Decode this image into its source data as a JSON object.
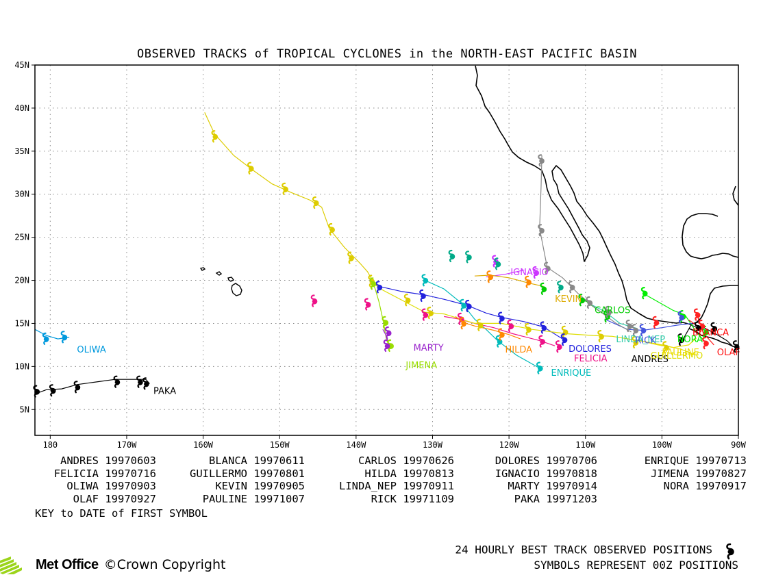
{
  "title": "OBSERVED TRACKS of TROPICAL CYCLONES in the NORTH-EAST PACIFIC BASIN",
  "map": {
    "lon_min": -182,
    "lon_max": -90,
    "lat_min": 2,
    "lat_max": 45,
    "lat_ticks": [
      {
        "v": 45,
        "label": "45N"
      },
      {
        "v": 40,
        "label": "40N"
      },
      {
        "v": 35,
        "label": "35N"
      },
      {
        "v": 30,
        "label": "30N"
      },
      {
        "v": 25,
        "label": "25N"
      },
      {
        "v": 20,
        "label": "20N"
      },
      {
        "v": 15,
        "label": "15N"
      },
      {
        "v": 10,
        "label": "10N"
      },
      {
        "v": 5,
        "label": "5N"
      }
    ],
    "lon_ticks": [
      {
        "v": -180,
        "label": "180"
      },
      {
        "v": -170,
        "label": "170W"
      },
      {
        "v": -160,
        "label": "160W"
      },
      {
        "v": -150,
        "label": "150W"
      },
      {
        "v": -140,
        "label": "140W"
      },
      {
        "v": -130,
        "label": "130W"
      },
      {
        "v": -120,
        "label": "120W"
      },
      {
        "v": -110,
        "label": "110W"
      },
      {
        "v": -100,
        "label": "100W"
      },
      {
        "v": -90,
        "label": "90W"
      }
    ],
    "grid": true
  },
  "tracks": [
    {
      "name": "ANDRES",
      "date": "19970603",
      "color": "#000000",
      "label_at": [
        -104,
        10.5
      ],
      "points": [
        [
          -90.8,
          12.4
        ],
        [
          -91.5,
          13
        ],
        [
          -93,
          13.8
        ],
        [
          -94.5,
          14.5
        ],
        [
          -95.2,
          14.2
        ],
        [
          -95.6,
          14.6
        ],
        [
          -96.2,
          14.8
        ],
        [
          -97.2,
          13.2
        ]
      ]
    },
    {
      "name": "BLANCA",
      "date": "19970611",
      "color": "#ff0000",
      "label_at": [
        -96,
        13.6
      ],
      "points": [
        [
          -94.5,
          13.5
        ],
        [
          -94.8,
          14.6
        ],
        [
          -95.2,
          15.4
        ],
        [
          -95.4,
          16.1
        ]
      ]
    },
    {
      "name": "CARLOS",
      "date": "19970626",
      "color": "#00cc00",
      "label_at": [
        -108.8,
        16.2
      ],
      "points": [
        [
          -110.5,
          18
        ],
        [
          -109.5,
          17.3
        ],
        [
          -108.3,
          16.5
        ],
        [
          -107,
          15.8
        ]
      ]
    },
    {
      "name": "DOLORES",
      "date": "19970706",
      "color": "#2222dd",
      "label_at": [
        -112.2,
        11.7
      ],
      "points": [
        [
          -137,
          19.3
        ],
        [
          -134,
          18.7
        ],
        [
          -131,
          18.3
        ],
        [
          -128.5,
          17.8
        ],
        [
          -125.5,
          17.1
        ],
        [
          -123,
          16.2
        ],
        [
          -121,
          15.7
        ],
        [
          -118,
          15.2
        ],
        [
          -115.5,
          14.6
        ],
        [
          -113,
          13.2
        ]
      ]
    },
    {
      "name": "ENRIQUE",
      "date": "19970713",
      "color": "#00bbbb",
      "label_at": [
        -114.5,
        8.9
      ],
      "points": [
        [
          -131,
          20
        ],
        [
          -128.5,
          19
        ],
        [
          -126,
          17.2
        ],
        [
          -124.5,
          15.5
        ],
        [
          -123,
          14.3
        ],
        [
          -121.5,
          13
        ],
        [
          -119,
          11.3
        ],
        [
          -116,
          9.8
        ]
      ]
    },
    {
      "name": "FELICIA",
      "date": "19970716",
      "color": "#ee1188",
      "label_at": [
        -111.5,
        10.6
      ],
      "points": [
        [
          -128.5,
          15.8
        ],
        [
          -126.5,
          15.5
        ],
        [
          -124.5,
          15
        ],
        [
          -122,
          14.5
        ],
        [
          -119.5,
          13.8
        ],
        [
          -116,
          13
        ],
        [
          -114,
          12.4
        ]
      ]
    },
    {
      "name": "GUILLERMO",
      "date": "19970801",
      "color": "#dddd00",
      "label_at": [
        -101.5,
        10.9
      ],
      "points": [
        [
          -95.5,
          11.3
        ],
        [
          -97.5,
          12
        ],
        [
          -100,
          12.5
        ],
        [
          -103,
          13
        ],
        [
          -106.5,
          13.5
        ],
        [
          -109,
          13.6
        ],
        [
          -112.5,
          13.8
        ],
        [
          -117,
          14.3
        ],
        [
          -121,
          15
        ],
        [
          -124.5,
          15
        ],
        [
          -128.5,
          16.1
        ],
        [
          -131,
          16.3
        ],
        [
          -134,
          17.7
        ],
        [
          -137,
          19.1
        ],
        [
          -138.2,
          20.2
        ]
      ]
    },
    {
      "name": "HILDA",
      "date": "19970813",
      "color": "#ff8800",
      "label_at": [
        -120.5,
        11.6
      ],
      "points": [
        [
          -127,
          15.8
        ],
        [
          -126,
          15.1
        ],
        [
          -124.5,
          14.7
        ],
        [
          -122,
          14.2
        ],
        [
          -120,
          13.7
        ],
        [
          -118.5,
          13.2
        ]
      ]
    },
    {
      "name": "IGNACIO",
      "date": "19970818",
      "color": "#cc33ff",
      "label_at": [
        -119.8,
        20.6
      ],
      "points": [
        [
          -123,
          20.4
        ],
        [
          -120.5,
          20.7
        ],
        [
          -118,
          21.2
        ]
      ]
    },
    {
      "name": "JIMENA",
      "date": "19970827",
      "color": "#99dd00",
      "label_at": [
        -133.5,
        9.8
      ],
      "points": [
        [
          -138,
          20
        ],
        [
          -137.5,
          19
        ],
        [
          -137,
          17.5
        ],
        [
          -136.5,
          15.5
        ],
        [
          -136,
          13
        ],
        [
          -135.5,
          12.3
        ]
      ]
    },
    {
      "name": "KEVIN",
      "date": "19970905",
      "color": "#ddaa00",
      "label_at": [
        -114,
        17.5
      ],
      "points": [
        [
          -124.5,
          20.5
        ],
        [
          -122.5,
          20.6
        ],
        [
          -120,
          20.3
        ],
        [
          -117.5,
          19.7
        ],
        [
          -115.5,
          19.3
        ]
      ]
    },
    {
      "name": "LINDA_NEP",
      "date": "19970911",
      "color": "#33ccaa",
      "label_at": [
        -106,
        12.8
      ],
      "points": [
        [
          -109.5,
          17.3
        ],
        [
          -107.5,
          16.4
        ],
        [
          -105.5,
          15
        ],
        [
          -103.2,
          14.4
        ]
      ]
    },
    {
      "name": "MARTY",
      "date": "19970914",
      "color": "#9922cc",
      "label_at": [
        -132.5,
        11.8
      ],
      "points": [
        [
          -136.5,
          14.3
        ],
        [
          -136,
          13.5
        ],
        [
          -135.8,
          12.7
        ],
        [
          -136,
          12.4
        ]
      ]
    },
    {
      "name": "NORA",
      "date": "19970917",
      "color": "#00ee00",
      "label_at": [
        -98,
        12.8
      ],
      "points": [
        [
          -102.5,
          18.5
        ],
        [
          -100.5,
          17.5
        ],
        [
          -98.5,
          16.5
        ],
        [
          -97,
          16
        ],
        [
          -95.5,
          14
        ],
        [
          -94,
          12.5
        ]
      ]
    },
    {
      "name": "OLAF",
      "date": "19970927",
      "color": "#ff1111",
      "label_at": [
        -92.8,
        11.3
      ],
      "points": [
        [
          -96.5,
          15.4
        ],
        [
          -95,
          14.5
        ],
        [
          -94.2,
          13.5
        ],
        [
          -93.2,
          12.5
        ]
      ]
    },
    {
      "name": "PAULINE",
      "date": "19971007",
      "color": "#eedd00",
      "label_at": [
        -100,
        11.3
      ],
      "points": [
        [
          -95.5,
          13.3
        ],
        [
          -96.5,
          12.5
        ],
        [
          -98.5,
          12.2
        ],
        [
          -100.5,
          12.5
        ],
        [
          -103,
          13
        ]
      ]
    },
    {
      "name": "RICK",
      "date": "19971109",
      "color": "#4455dd",
      "label_at": [
        -103.5,
        12.7
      ],
      "points": [
        [
          -96,
          15
        ],
        [
          -98,
          14.8
        ],
        [
          -100,
          14.5
        ],
        [
          -102.5,
          14.2
        ],
        [
          -104.5,
          14.3
        ],
        [
          -107.5,
          15.5
        ]
      ]
    },
    {
      "name": "OLIWA",
      "date": "19970903",
      "color": "#0099dd",
      "label_at": [
        -176.5,
        11.6
      ],
      "points": [
        [
          -182,
          14.3
        ],
        [
          -180.5,
          13.6
        ],
        [
          -179,
          13.2
        ],
        [
          -177.5,
          13.4
        ]
      ]
    },
    {
      "name": "PAKA",
      "date": "19971203",
      "color": "#000000",
      "label_at": [
        -166.5,
        6.8
      ],
      "points": [
        [
          -182,
          6.8
        ],
        [
          -180.5,
          7.3
        ],
        [
          -178.5,
          7.4
        ],
        [
          -176.5,
          7.9
        ],
        [
          -174,
          8.2
        ],
        [
          -171.5,
          8.5
        ],
        [
          -169,
          8.5
        ],
        [
          -167.5,
          8.5
        ],
        [
          -167,
          8
        ]
      ]
    },
    {
      "name": "",
      "date": "",
      "color": "#ddcc00",
      "label_at": null,
      "points": [
        [
          -159.8,
          39.5
        ],
        [
          -158.5,
          37
        ],
        [
          -156,
          34.5
        ],
        [
          -153.5,
          32.8
        ],
        [
          -151,
          31.2
        ],
        [
          -148.5,
          30.2
        ],
        [
          -146,
          29.3
        ],
        [
          -144.5,
          28.5
        ],
        [
          -143.5,
          26
        ],
        [
          -141.5,
          23.8
        ],
        [
          -139.5,
          22
        ],
        [
          -138.5,
          21
        ],
        [
          -138,
          20.2
        ]
      ]
    },
    {
      "name": "",
      "date": "",
      "color": "#888888",
      "label_at": null,
      "points": [
        [
          -115.7,
          34.5
        ],
        [
          -115.8,
          31
        ],
        [
          -116,
          26
        ],
        [
          -115,
          21.5
        ],
        [
          -113,
          20.3
        ],
        [
          -111,
          18.5
        ],
        [
          -109,
          17
        ],
        [
          -106,
          15
        ],
        [
          -104,
          14
        ]
      ]
    }
  ],
  "symbols": [
    {
      "lon": -158.5,
      "lat": 36.8,
      "color": "#ddcc00"
    },
    {
      "lon": -153.8,
      "lat": 33.1,
      "color": "#ddcc00"
    },
    {
      "lon": -149.3,
      "lat": 30.7,
      "color": "#ddcc00"
    },
    {
      "lon": -145.3,
      "lat": 29.1,
      "color": "#ddcc00"
    },
    {
      "lon": -143.2,
      "lat": 26,
      "color": "#ddcc00"
    },
    {
      "lon": -140.7,
      "lat": 22.7,
      "color": "#ddcc00"
    },
    {
      "lon": -138,
      "lat": 20,
      "color": "#ddcc00"
    },
    {
      "lon": -133.3,
      "lat": 17.8,
      "color": "#ddcc00"
    },
    {
      "lon": -130.3,
      "lat": 16.3,
      "color": "#ddcc00"
    },
    {
      "lon": -123.8,
      "lat": 14.9,
      "color": "#ddcc00"
    },
    {
      "lon": -117.5,
      "lat": 14.4,
      "color": "#ddcc00"
    },
    {
      "lon": -112.7,
      "lat": 14.1,
      "color": "#ddcc00"
    },
    {
      "lon": -108,
      "lat": 13.6,
      "color": "#ddcc00"
    },
    {
      "lon": -103.5,
      "lat": 12.9,
      "color": "#ddcc00"
    },
    {
      "lon": -99.5,
      "lat": 12.3,
      "color": "#ddcc00"
    },
    {
      "lon": -137,
      "lat": 19.3,
      "color": "#2222dd"
    },
    {
      "lon": -131.3,
      "lat": 18.3,
      "color": "#2222dd"
    },
    {
      "lon": -125.3,
      "lat": 17.1,
      "color": "#2222dd"
    },
    {
      "lon": -121,
      "lat": 15.7,
      "color": "#2222dd"
    },
    {
      "lon": -115.5,
      "lat": 14.6,
      "color": "#2222dd"
    },
    {
      "lon": -112.8,
      "lat": 13.2,
      "color": "#2222dd"
    },
    {
      "lon": -131,
      "lat": 20.1,
      "color": "#00bbbb"
    },
    {
      "lon": -126,
      "lat": 17.2,
      "color": "#00bbbb"
    },
    {
      "lon": -121.3,
      "lat": 13,
      "color": "#00bbbb"
    },
    {
      "lon": -116,
      "lat": 9.9,
      "color": "#00bbbb"
    },
    {
      "lon": -145.5,
      "lat": 17.7,
      "color": "#ee1188"
    },
    {
      "lon": -138.5,
      "lat": 17.3,
      "color": "#ee1188"
    },
    {
      "lon": -131,
      "lat": 16.1,
      "color": "#ee1188"
    },
    {
      "lon": -126.3,
      "lat": 15.6,
      "color": "#ee1188"
    },
    {
      "lon": -119.8,
      "lat": 14.8,
      "color": "#ee1188"
    },
    {
      "lon": -115.7,
      "lat": 13,
      "color": "#ee1188"
    },
    {
      "lon": -113.5,
      "lat": 12.4,
      "color": "#ee1188"
    },
    {
      "lon": -126,
      "lat": 15.1,
      "color": "#ff8800"
    },
    {
      "lon": -121,
      "lat": 13.8,
      "color": "#ff8800"
    },
    {
      "lon": -122.5,
      "lat": 20.5,
      "color": "#ff8800"
    },
    {
      "lon": -117.5,
      "lat": 19.9,
      "color": "#ff8800"
    },
    {
      "lon": -121.8,
      "lat": 22.3,
      "color": "#cc33ff"
    },
    {
      "lon": -116.5,
      "lat": 21,
      "color": "#cc33ff"
    },
    {
      "lon": -127.5,
      "lat": 22.9,
      "color": "#00aa88"
    },
    {
      "lon": -125.3,
      "lat": 22.8,
      "color": "#00aa88"
    },
    {
      "lon": -121.5,
      "lat": 22,
      "color": "#00aa88"
    },
    {
      "lon": -113.3,
      "lat": 19.3,
      "color": "#00aa88"
    },
    {
      "lon": -137.8,
      "lat": 19.7,
      "color": "#99dd00"
    },
    {
      "lon": -136.2,
      "lat": 15.2,
      "color": "#99dd00"
    },
    {
      "lon": -135.5,
      "lat": 12.5,
      "color": "#99dd00"
    },
    {
      "lon": -135.8,
      "lat": 14,
      "color": "#9922cc"
    },
    {
      "lon": -136,
      "lat": 12.5,
      "color": "#9922cc"
    },
    {
      "lon": -115.5,
      "lat": 19.1,
      "color": "#00cc00"
    },
    {
      "lon": -110.5,
      "lat": 17.8,
      "color": "#00cc00"
    },
    {
      "lon": -107.2,
      "lat": 15.9,
      "color": "#00cc00"
    },
    {
      "lon": -102.3,
      "lat": 18.6,
      "color": "#00ee00"
    },
    {
      "lon": -97.3,
      "lat": 15.9,
      "color": "#00ee00"
    },
    {
      "lon": -94.3,
      "lat": 14.1,
      "color": "#00ee00"
    },
    {
      "lon": -115.8,
      "lat": 34,
      "color": "#888888"
    },
    {
      "lon": -115.8,
      "lat": 25.9,
      "color": "#888888"
    },
    {
      "lon": -115,
      "lat": 21.5,
      "color": "#888888"
    },
    {
      "lon": -111.8,
      "lat": 19.3,
      "color": "#888888"
    },
    {
      "lon": -109.5,
      "lat": 17.5,
      "color": "#888888"
    },
    {
      "lon": -107,
      "lat": 16.4,
      "color": "#888888"
    },
    {
      "lon": -104.3,
      "lat": 14.8,
      "color": "#888888"
    },
    {
      "lon": -103.5,
      "lat": 14.3,
      "color": "#888888"
    },
    {
      "lon": -102.5,
      "lat": 14.3,
      "color": "#4455dd"
    },
    {
      "lon": -97.5,
      "lat": 15.8,
      "color": "#4455dd"
    },
    {
      "lon": -100.8,
      "lat": 15.2,
      "color": "#ff2222"
    },
    {
      "lon": -95.4,
      "lat": 16.1,
      "color": "#ff2222"
    },
    {
      "lon": -94.8,
      "lat": 14.8,
      "color": "#ff2222"
    },
    {
      "lon": -94.3,
      "lat": 12.8,
      "color": "#ff2222"
    },
    {
      "lon": -97.5,
      "lat": 13.2,
      "color": "#000000"
    },
    {
      "lon": -95.3,
      "lat": 14.6,
      "color": "#000000"
    },
    {
      "lon": -93.2,
      "lat": 14.5,
      "color": "#000000"
    },
    {
      "lon": -90.3,
      "lat": 12.4,
      "color": "#000000"
    },
    {
      "lon": -180.6,
      "lat": 13.3,
      "color": "#0099dd"
    },
    {
      "lon": -178.2,
      "lat": 13.5,
      "color": "#0099dd"
    },
    {
      "lon": -181.8,
      "lat": 7.2,
      "color": "#000000"
    },
    {
      "lon": -179.7,
      "lat": 7.3,
      "color": "#000000"
    },
    {
      "lon": -176.5,
      "lat": 7.7,
      "color": "#000000"
    },
    {
      "lon": -171.3,
      "lat": 8.3,
      "color": "#000000"
    },
    {
      "lon": -168.3,
      "lat": 8.3,
      "color": "#000000"
    },
    {
      "lon": -167.5,
      "lat": 8.1,
      "color": "#000000"
    }
  ],
  "key": {
    "rows": [
      [
        "ANDRES 19970603",
        "BLANCA 19970611",
        "CARLOS 19970626",
        "DOLORES 19970706",
        "ENRIQUE 19970713"
      ],
      [
        "FELICIA 19970716",
        "GUILLERMO 19970801",
        "HILDA 19970813",
        "IGNACIO 19970818",
        "JIMENA 19970827"
      ],
      [
        "OLIWA 19970903",
        "KEVIN 19970905",
        "LINDA_NEP 19970911",
        "MARTY 19970914",
        "NORA 19970917"
      ],
      [
        "OLAF 19970927",
        "PAULINE 19971007",
        "RICK 19971109",
        "PAKA 19971203",
        ""
      ]
    ],
    "note": "KEY to DATE of FIRST SYMBOL"
  },
  "footer": {
    "line1": "24 HOURLY BEST TRACK OBSERVED POSITIONS",
    "line2": "SYMBOLS REPRESENT 00Z POSITIONS",
    "logo": "Met Office",
    "copyright": "©Crown Copyright"
  }
}
